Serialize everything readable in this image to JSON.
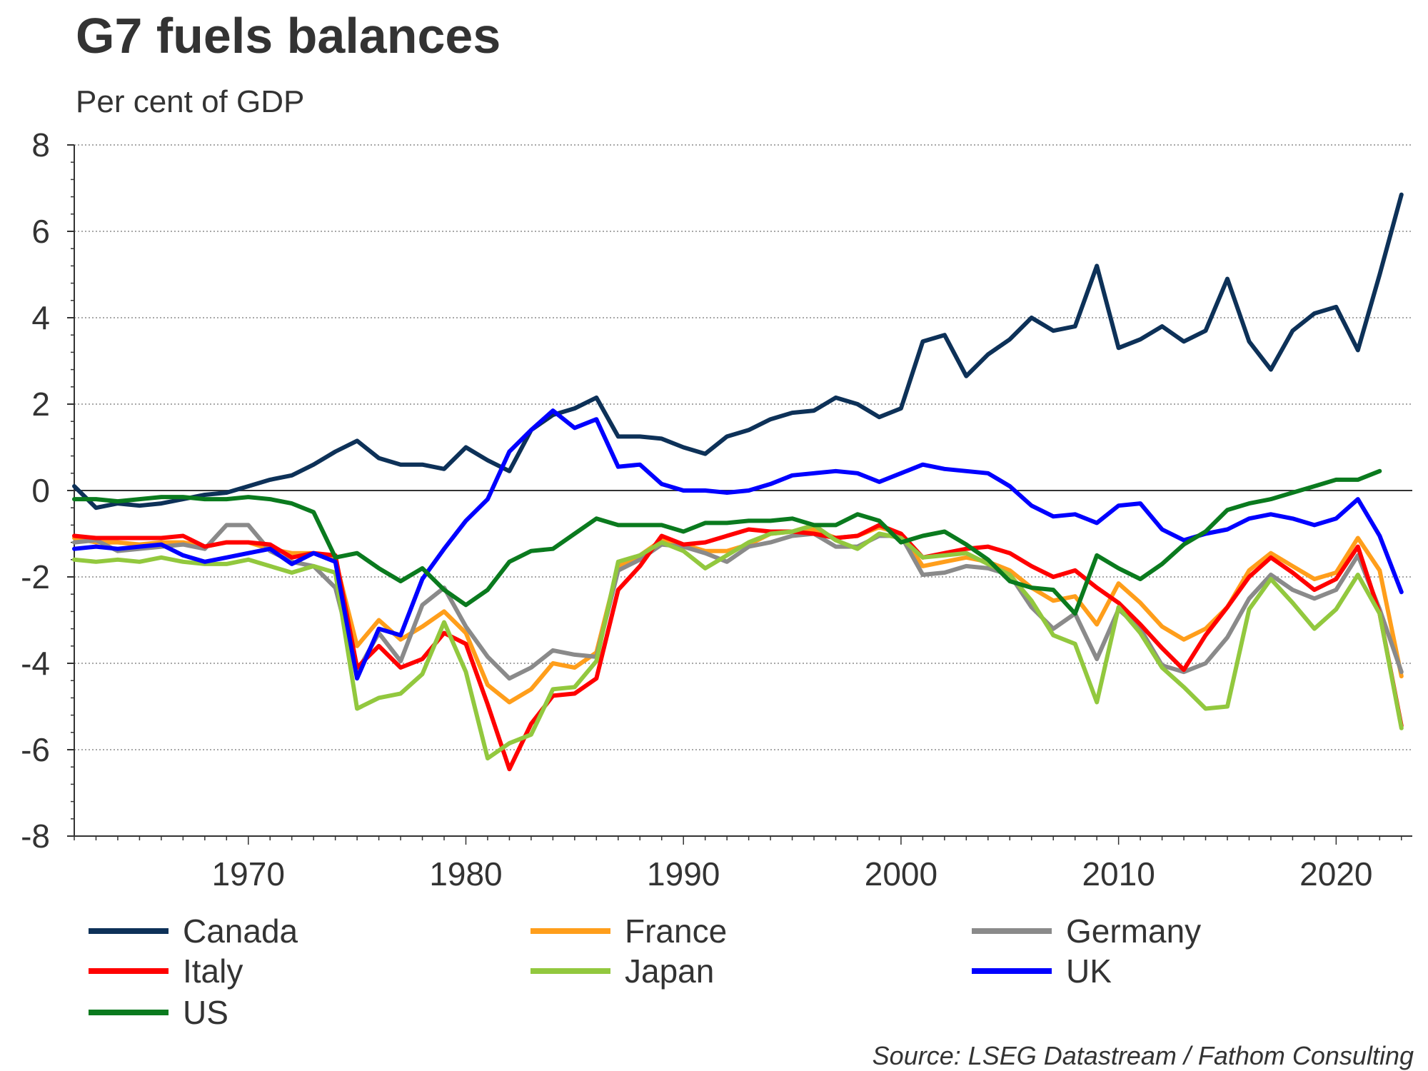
{
  "chart_data": {
    "type": "line",
    "title": "G7 fuels balances",
    "subtitle": "Per cent of GDP",
    "source": "Source: LSEG Datastream / Fathom Consulting",
    "ylim": [
      -8,
      8
    ],
    "xlim": [
      1962,
      2023.5
    ],
    "yticks": [
      -8,
      -6,
      -4,
      -2,
      0,
      2,
      4,
      6,
      8
    ],
    "ytick_labels": [
      "-8",
      "-6",
      "-4",
      "-2",
      "0",
      "2",
      "4",
      "6",
      "8"
    ],
    "xticks": [
      1970,
      1980,
      1990,
      2000,
      2010,
      2020
    ],
    "xtick_labels": [
      "1970",
      "1980",
      "1990",
      "2000",
      "2010",
      "2020"
    ],
    "legend_position": "bottom",
    "series": [
      {
        "name": "Canada",
        "color": "#0d3158",
        "x_start": 1962,
        "values": [
          0.1,
          -0.4,
          -0.3,
          -0.35,
          -0.3,
          -0.2,
          -0.1,
          -0.05,
          0.1,
          0.25,
          0.35,
          0.6,
          0.9,
          1.15,
          0.75,
          0.6,
          0.6,
          0.5,
          1.0,
          0.7,
          0.45,
          1.4,
          1.75,
          1.9,
          2.15,
          1.25,
          1.25,
          1.2,
          1.0,
          0.85,
          1.25,
          1.4,
          1.65,
          1.8,
          1.85,
          2.15,
          2.0,
          1.7,
          1.9,
          3.45,
          3.6,
          2.65,
          3.15,
          3.5,
          4.0,
          3.7,
          3.8,
          5.2,
          3.3,
          3.5,
          3.8,
          3.45,
          3.7,
          4.9,
          3.45,
          2.8,
          3.7,
          4.1,
          4.25,
          3.25,
          5.0,
          6.85
        ]
      },
      {
        "name": "France",
        "color": "#ff9e1b",
        "x_start": 1962,
        "values": [
          -1.1,
          -1.2,
          -1.2,
          -1.25,
          -1.2,
          -1.2,
          -1.3,
          -1.2,
          -1.2,
          -1.35,
          -1.45,
          -1.45,
          -1.6,
          -3.6,
          -3.0,
          -3.45,
          -3.15,
          -2.8,
          -3.3,
          -4.5,
          -4.9,
          -4.6,
          -4.0,
          -4.1,
          -3.75,
          -1.75,
          -1.5,
          -1.15,
          -1.25,
          -1.4,
          -1.4,
          -1.25,
          -1.0,
          -0.95,
          -0.9,
          -1.1,
          -1.05,
          -0.85,
          -1.0,
          -1.75,
          -1.65,
          -1.55,
          -1.65,
          -1.85,
          -2.25,
          -2.55,
          -2.45,
          -3.1,
          -2.15,
          -2.6,
          -3.15,
          -3.45,
          -3.2,
          -2.7,
          -1.85,
          -1.45,
          -1.75,
          -2.05,
          -1.9,
          -1.1,
          -1.85,
          -4.3
        ]
      },
      {
        "name": "Germany",
        "color": "#8a8a8a",
        "x_start": 1962,
        "values": [
          -1.2,
          -1.15,
          -1.4,
          -1.35,
          -1.3,
          -1.25,
          -1.35,
          -0.8,
          -0.8,
          -1.4,
          -1.65,
          -1.75,
          -2.25,
          -4.2,
          -3.3,
          -3.95,
          -2.65,
          -2.25,
          -3.15,
          -3.85,
          -4.35,
          -4.1,
          -3.7,
          -3.8,
          -3.85,
          -1.85,
          -1.6,
          -1.25,
          -1.3,
          -1.45,
          -1.65,
          -1.3,
          -1.2,
          -1.05,
          -1.0,
          -1.3,
          -1.3,
          -1.05,
          -1.05,
          -1.95,
          -1.9,
          -1.75,
          -1.8,
          -1.95,
          -2.7,
          -3.2,
          -2.85,
          -3.9,
          -2.75,
          -3.2,
          -4.05,
          -4.2,
          -4.0,
          -3.4,
          -2.5,
          -1.95,
          -2.3,
          -2.5,
          -2.3,
          -1.5,
          -2.75,
          -4.2
        ]
      },
      {
        "name": "Italy",
        "color": "#ff0000",
        "x_start": 1962,
        "values": [
          -1.05,
          -1.1,
          -1.1,
          -1.1,
          -1.1,
          -1.05,
          -1.3,
          -1.2,
          -1.2,
          -1.25,
          -1.55,
          -1.45,
          -1.5,
          -4.1,
          -3.6,
          -4.1,
          -3.9,
          -3.3,
          -3.55,
          -4.95,
          -6.45,
          -5.4,
          -4.75,
          -4.7,
          -4.35,
          -2.3,
          -1.75,
          -1.05,
          -1.25,
          -1.2,
          -1.05,
          -0.9,
          -0.95,
          -0.95,
          -1.0,
          -1.1,
          -1.05,
          -0.8,
          -1.0,
          -1.55,
          -1.45,
          -1.35,
          -1.3,
          -1.45,
          -1.75,
          -2.0,
          -1.85,
          -2.25,
          -2.6,
          -3.1,
          -3.65,
          -4.15,
          -3.35,
          -2.7,
          -2.0,
          -1.55,
          -1.9,
          -2.3,
          -2.05,
          -1.3,
          -2.85,
          -5.45
        ]
      },
      {
        "name": "Japan",
        "color": "#92c83e",
        "x_start": 1962,
        "values": [
          -1.6,
          -1.65,
          -1.6,
          -1.65,
          -1.55,
          -1.65,
          -1.7,
          -1.7,
          -1.6,
          -1.75,
          -1.9,
          -1.75,
          -1.9,
          -5.05,
          -4.8,
          -4.7,
          -4.25,
          -3.05,
          -4.2,
          -6.2,
          -5.85,
          -5.65,
          -4.6,
          -4.55,
          -3.95,
          -1.65,
          -1.5,
          -1.2,
          -1.4,
          -1.8,
          -1.5,
          -1.2,
          -1.0,
          -0.95,
          -0.8,
          -1.15,
          -1.35,
          -1.0,
          -1.1,
          -1.55,
          -1.5,
          -1.45,
          -1.7,
          -1.95,
          -2.55,
          -3.35,
          -3.55,
          -4.9,
          -2.7,
          -3.3,
          -4.1,
          -4.55,
          -5.05,
          -5.0,
          -2.75,
          -2.05,
          -2.6,
          -3.2,
          -2.75,
          -1.95,
          -2.85,
          -5.5
        ]
      },
      {
        "name": "UK",
        "color": "#0000ff",
        "x_start": 1962,
        "values": [
          -1.35,
          -1.3,
          -1.35,
          -1.3,
          -1.25,
          -1.5,
          -1.65,
          -1.55,
          -1.45,
          -1.35,
          -1.7,
          -1.45,
          -1.65,
          -4.35,
          -3.2,
          -3.35,
          -2.05,
          -1.35,
          -0.7,
          -0.2,
          0.9,
          1.4,
          1.85,
          1.45,
          1.65,
          0.55,
          0.6,
          0.15,
          0.0,
          0.0,
          -0.05,
          0.0,
          0.15,
          0.35,
          0.4,
          0.45,
          0.4,
          0.2,
          0.4,
          0.6,
          0.5,
          0.45,
          0.4,
          0.1,
          -0.35,
          -0.6,
          -0.55,
          -0.75,
          -0.35,
          -0.3,
          -0.9,
          -1.15,
          -1.0,
          -0.9,
          -0.65,
          -0.55,
          -0.65,
          -0.8,
          -0.65,
          -0.2,
          -1.05,
          -2.35
        ]
      },
      {
        "name": "US",
        "color": "#0a7a1e",
        "x_start": 1962,
        "values": [
          -0.2,
          -0.2,
          -0.25,
          -0.2,
          -0.15,
          -0.15,
          -0.2,
          -0.2,
          -0.15,
          -0.2,
          -0.3,
          -0.5,
          -1.55,
          -1.45,
          -1.8,
          -2.1,
          -1.8,
          -2.3,
          -2.65,
          -2.3,
          -1.65,
          -1.4,
          -1.35,
          -1.0,
          -0.65,
          -0.8,
          -0.8,
          -0.8,
          -0.95,
          -0.75,
          -0.75,
          -0.7,
          -0.7,
          -0.65,
          -0.8,
          -0.8,
          -0.55,
          -0.7,
          -1.2,
          -1.05,
          -0.95,
          -1.25,
          -1.6,
          -2.1,
          -2.25,
          -2.3,
          -2.85,
          -1.5,
          -1.8,
          -2.05,
          -1.7,
          -1.25,
          -0.95,
          -0.45,
          -0.3,
          -0.2,
          -0.05,
          0.1,
          0.25,
          0.25,
          0.45
        ]
      }
    ]
  }
}
